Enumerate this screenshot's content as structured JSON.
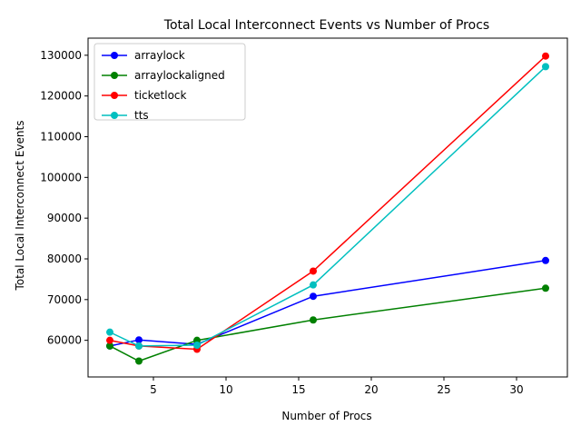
{
  "chart_data": {
    "type": "line",
    "title": "Total Local Interconnect Events vs Number of Procs",
    "xlabel": "Number of Procs",
    "ylabel": "Total Local Interconnect Events",
    "xlim": [
      0.5,
      33.5
    ],
    "ylim": [
      51000,
      134200
    ],
    "xticks": [
      5,
      10,
      15,
      20,
      25,
      30
    ],
    "xtick_labels": [
      "5",
      "10",
      "15",
      "20",
      "25",
      "30"
    ],
    "yticks": [
      60000,
      70000,
      80000,
      90000,
      100000,
      110000,
      120000,
      130000
    ],
    "ytick_labels": [
      "60000",
      "70000",
      "80000",
      "90000",
      "100000",
      "110000",
      "120000",
      "130000"
    ],
    "grid": false,
    "legend_position": "upper-left",
    "series": [
      {
        "name": "arraylock",
        "color": "#0000ff",
        "x": [
          2,
          4,
          8,
          16,
          32
        ],
        "y": [
          58600,
          60100,
          59000,
          70800,
          79600
        ]
      },
      {
        "name": "arraylockaligned",
        "color": "#008000",
        "x": [
          2,
          4,
          8,
          16,
          32
        ],
        "y": [
          58600,
          54900,
          60000,
          65000,
          72800
        ]
      },
      {
        "name": "ticketlock",
        "color": "#ff0000",
        "x": [
          2,
          4,
          8,
          16,
          32
        ],
        "y": [
          60000,
          58600,
          57800,
          77000,
          129800
        ]
      },
      {
        "name": "tts",
        "color": "#00bfbf",
        "x": [
          2,
          4,
          8,
          16,
          32
        ],
        "y": [
          62000,
          58600,
          58800,
          73600,
          127200
        ]
      }
    ]
  }
}
